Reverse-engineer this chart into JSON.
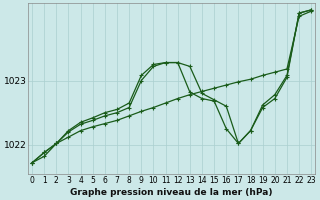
{
  "xlabel": "Graphe pression niveau de la mer (hPa)",
  "bg_color": "#cce8e8",
  "line_color": "#1a5c1a",
  "x_ticks": [
    0,
    1,
    2,
    3,
    4,
    5,
    6,
    7,
    8,
    9,
    10,
    11,
    12,
    13,
    14,
    15,
    16,
    17,
    18,
    19,
    20,
    21,
    22,
    23
  ],
  "y_ticks": [
    1022,
    1023
  ],
  "ylim": [
    1021.55,
    1024.2
  ],
  "xlim": [
    -0.3,
    23.3
  ],
  "series1": [
    1021.72,
    1021.82,
    1022.02,
    1022.12,
    1022.22,
    1022.28,
    1022.33,
    1022.38,
    1022.45,
    1022.52,
    1022.58,
    1022.65,
    1022.72,
    1022.78,
    1022.83,
    1022.88,
    1022.93,
    1022.98,
    1023.02,
    1023.08,
    1023.13,
    1023.18,
    1024.0,
    1024.08
  ],
  "series2": [
    1021.72,
    1021.88,
    1022.02,
    1022.2,
    1022.32,
    1022.38,
    1022.45,
    1022.5,
    1022.58,
    1023.0,
    1023.22,
    1023.28,
    1023.28,
    1022.82,
    1022.72,
    1022.68,
    1022.25,
    1022.02,
    1022.22,
    1022.58,
    1022.72,
    1023.05,
    1024.05,
    1024.1
  ],
  "series3": [
    1021.72,
    1021.88,
    1022.02,
    1022.22,
    1022.35,
    1022.42,
    1022.5,
    1022.55,
    1022.65,
    1023.08,
    1023.25,
    1023.28,
    1023.28,
    1023.22,
    1022.8,
    1022.7,
    1022.6,
    1022.02,
    1022.22,
    1022.62,
    1022.78,
    1023.08,
    1024.05,
    1024.1
  ],
  "grid_color": "#aacfcf",
  "tick_fontsize": 5.5,
  "label_fontsize": 6.5,
  "linewidth": 0.9,
  "markersize": 3.5
}
